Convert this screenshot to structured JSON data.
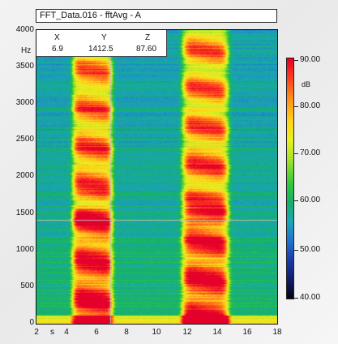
{
  "window": {
    "title": "FFT_Data.016 - fftAvg - A"
  },
  "readout": {
    "x_header": "X",
    "y_header": "Y",
    "z_header": "Z",
    "x_value": "6.9",
    "y_value": "1412.5",
    "z_value": "87.60"
  },
  "y_axis": {
    "unit": "Hz",
    "ticks": [
      "4000",
      "3500",
      "3000",
      "2500",
      "2000",
      "1500",
      "1000",
      "500",
      "0"
    ]
  },
  "x_axis": {
    "unit": "s",
    "ticks": [
      "2",
      "4",
      "6",
      "8",
      "10",
      "12",
      "14",
      "16",
      "18"
    ]
  },
  "colorbar": {
    "unit": "dB",
    "ticks": [
      "90.00",
      "80.00",
      "70.00",
      "60.00",
      "50.00",
      "40.00"
    ]
  },
  "chart_data": {
    "type": "heatmap",
    "title": "FFT_Data.016 - fftAvg - A",
    "xlabel": "s",
    "ylabel": "Hz",
    "xlim": [
      2,
      18
    ],
    "ylim": [
      0,
      4000
    ],
    "zlim": [
      40,
      90
    ],
    "zlabel": "dB",
    "cursor": {
      "x": 6.9,
      "y": 1412.5,
      "z": 87.6
    },
    "grid": false,
    "colors": [
      "#040410",
      "#101e6a",
      "#1b3aa8",
      "#1f73d2",
      "#1aa6b6",
      "#15b06a",
      "#33c93a",
      "#a6e22a",
      "#e8f020",
      "#ffd21a",
      "#ff8a1a",
      "#ff3b1e",
      "#e4002a"
    ]
  }
}
